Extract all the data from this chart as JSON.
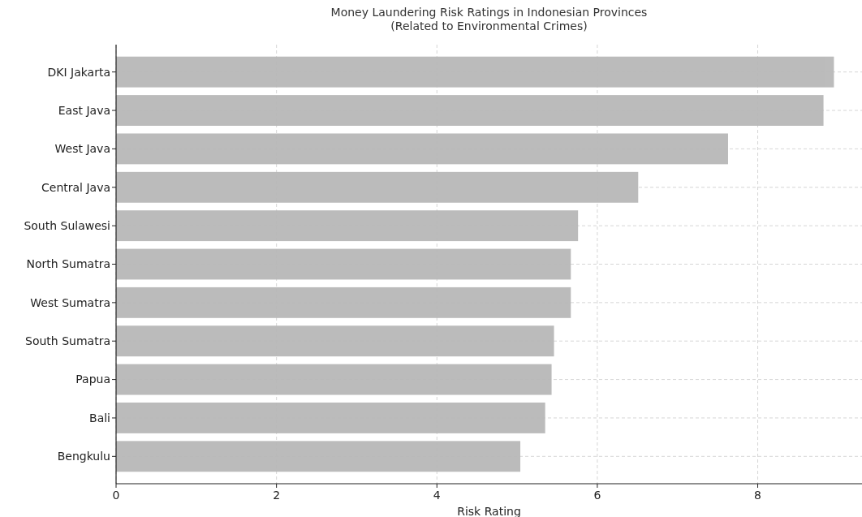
{
  "chart_data": {
    "type": "bar",
    "orientation": "horizontal",
    "title": "Money Laundering Risk Ratings in Indonesian Provinces\n(Related to Environmental Crimes)",
    "xlabel": "Risk Rating",
    "categories": [
      "DKI Jakarta",
      "East Java",
      "West Java",
      "Central Java",
      "South Sulawesi",
      "North Sumatra",
      "West Sumatra",
      "South Sumatra",
      "Papua",
      "Bali",
      "Bengkulu"
    ],
    "values": [
      8.95,
      8.82,
      7.63,
      6.51,
      5.76,
      5.67,
      5.67,
      5.46,
      5.43,
      5.35,
      5.04
    ],
    "color": "#b8b8b8",
    "xlim": [
      0,
      9.3
    ],
    "xticks": [
      0,
      2,
      4,
      6,
      8
    ],
    "grid": true
  }
}
